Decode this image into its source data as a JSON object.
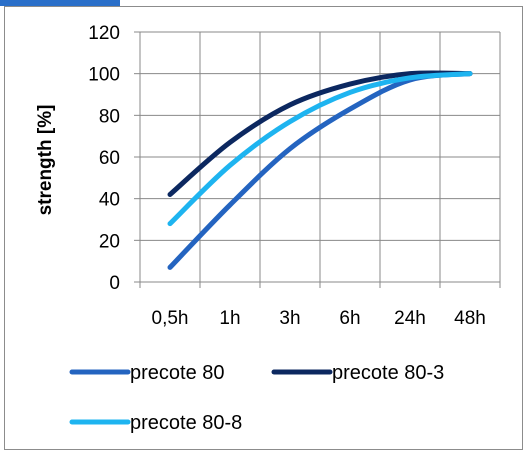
{
  "chart_data": {
    "type": "line",
    "title": "",
    "xlabel": "",
    "ylabel": "strength [%]",
    "categories": [
      "0,5h",
      "1h",
      "3h",
      "6h",
      "24h",
      "48h"
    ],
    "ylim": [
      0,
      120
    ],
    "yticks": [
      0,
      20,
      40,
      60,
      80,
      100,
      120
    ],
    "grid": true,
    "legend_position": "bottom",
    "smooth": true,
    "series": [
      {
        "name": "precote 80",
        "color": "#2464c0",
        "values": [
          7,
          37,
          64,
          83,
          97,
          100
        ]
      },
      {
        "name": "precote 80-3",
        "color": "#0c2860",
        "values": [
          42,
          67,
          85,
          95,
          100,
          100
        ]
      },
      {
        "name": "precote 80-8",
        "color": "#1eb4f0",
        "values": [
          28,
          56,
          77,
          91,
          98,
          100
        ]
      }
    ]
  }
}
